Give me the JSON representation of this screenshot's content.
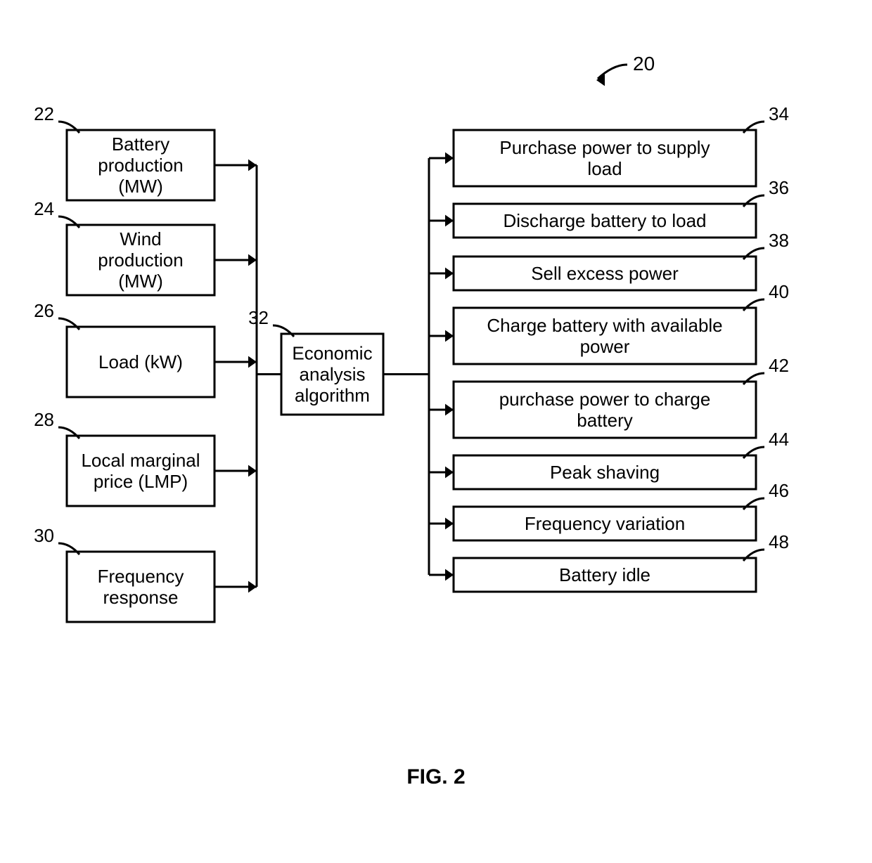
{
  "figure": {
    "caption": "FIG. 2",
    "caption_fontsize": 30,
    "ref_label": "20",
    "ref_label_fontsize": 28,
    "node_fontsize": 26,
    "small_label_fontsize": 26,
    "stroke_color": "#000000",
    "stroke_width": 3,
    "bg_color": "#ffffff",
    "text_color": "#000000",
    "arrowhead_length": 12
  },
  "inputs": [
    {
      "id": "22",
      "lines": [
        "Battery",
        "production",
        "(MW)"
      ]
    },
    {
      "id": "24",
      "lines": [
        "Wind",
        "production",
        "(MW)"
      ]
    },
    {
      "id": "26",
      "lines": [
        "Load (kW)"
      ]
    },
    {
      "id": "28",
      "lines": [
        "Local marginal",
        "price (LMP)"
      ]
    },
    {
      "id": "30",
      "lines": [
        "Frequency",
        "response"
      ]
    }
  ],
  "center": {
    "id": "32",
    "lines": [
      "Economic",
      "analysis",
      "algorithm"
    ]
  },
  "outputs": [
    {
      "id": "34",
      "lines": [
        "Purchase power to supply",
        "load"
      ]
    },
    {
      "id": "36",
      "lines": [
        "Discharge battery to load"
      ]
    },
    {
      "id": "38",
      "lines": [
        "Sell excess power"
      ]
    },
    {
      "id": "40",
      "lines": [
        "Charge battery with available",
        "power"
      ]
    },
    {
      "id": "42",
      "lines": [
        "purchase power to charge",
        "battery"
      ]
    },
    {
      "id": "44",
      "lines": [
        "Peak shaving"
      ]
    },
    {
      "id": "46",
      "lines": [
        "Frequency  variation"
      ]
    },
    {
      "id": "48",
      "lines": [
        "Battery idle"
      ]
    }
  ]
}
